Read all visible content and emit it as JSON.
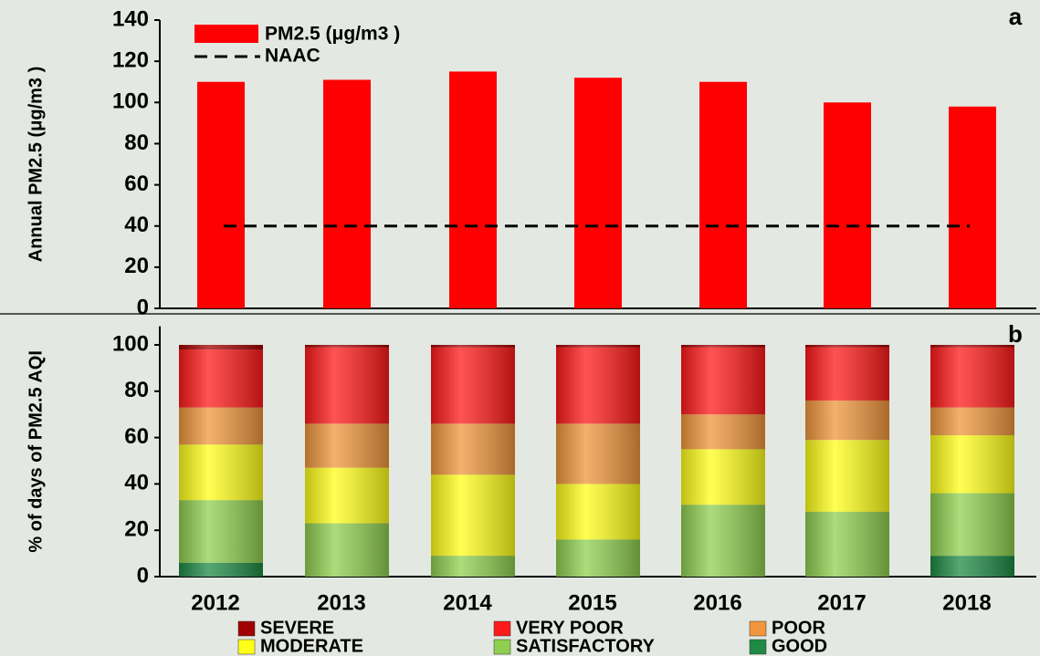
{
  "chart_data": [
    {
      "type": "bar",
      "panel_label": "a",
      "y_label": "Annual PM2.5 (μg/m3 )",
      "categories": [
        null,
        null,
        null,
        null,
        null,
        null,
        null
      ],
      "series": [
        {
          "name": "PM2.5 (μg/m3 )",
          "color": "#ff0000",
          "values": [
            110,
            111,
            115,
            112,
            110,
            100,
            98
          ]
        }
      ],
      "reference_line": {
        "name": "NAAC",
        "value": 40,
        "color": "#000000"
      },
      "ylim": [
        0,
        140
      ],
      "yticks": [
        0,
        20,
        40,
        60,
        80,
        100,
        120,
        140
      ]
    },
    {
      "type": "stacked_bar",
      "panel_label": "b",
      "y_label": "% of days of PM2.5 AQI",
      "categories": [
        "2012",
        "2013",
        "2014",
        "2015",
        "2016",
        "2017",
        "2018"
      ],
      "series": [
        {
          "name": "GOOD",
          "color": "#1e8a44",
          "values": [
            6,
            0,
            0,
            0,
            0,
            0,
            9
          ]
        },
        {
          "name": "SATISFACTORY",
          "color": "#8fcf50",
          "values": [
            27,
            23,
            9,
            16,
            31,
            28,
            27
          ]
        },
        {
          "name": "MODERATE",
          "color": "#ffff1a",
          "values": [
            24,
            24,
            35,
            24,
            24,
            31,
            25
          ]
        },
        {
          "name": "POOR",
          "color": "#f0963c",
          "values": [
            16,
            19,
            22,
            26,
            15,
            17,
            12
          ]
        },
        {
          "name": "VERY POOR",
          "color": "#ff1a1a",
          "values": [
            25,
            33,
            33,
            33,
            29,
            23,
            26
          ]
        },
        {
          "name": "SEVERE",
          "color": "#a00000",
          "values": [
            2,
            1,
            1,
            1,
            1,
            1,
            1
          ]
        }
      ],
      "ylim": [
        0,
        108
      ],
      "yticks": [
        0,
        20,
        40,
        60,
        80,
        100
      ]
    }
  ]
}
